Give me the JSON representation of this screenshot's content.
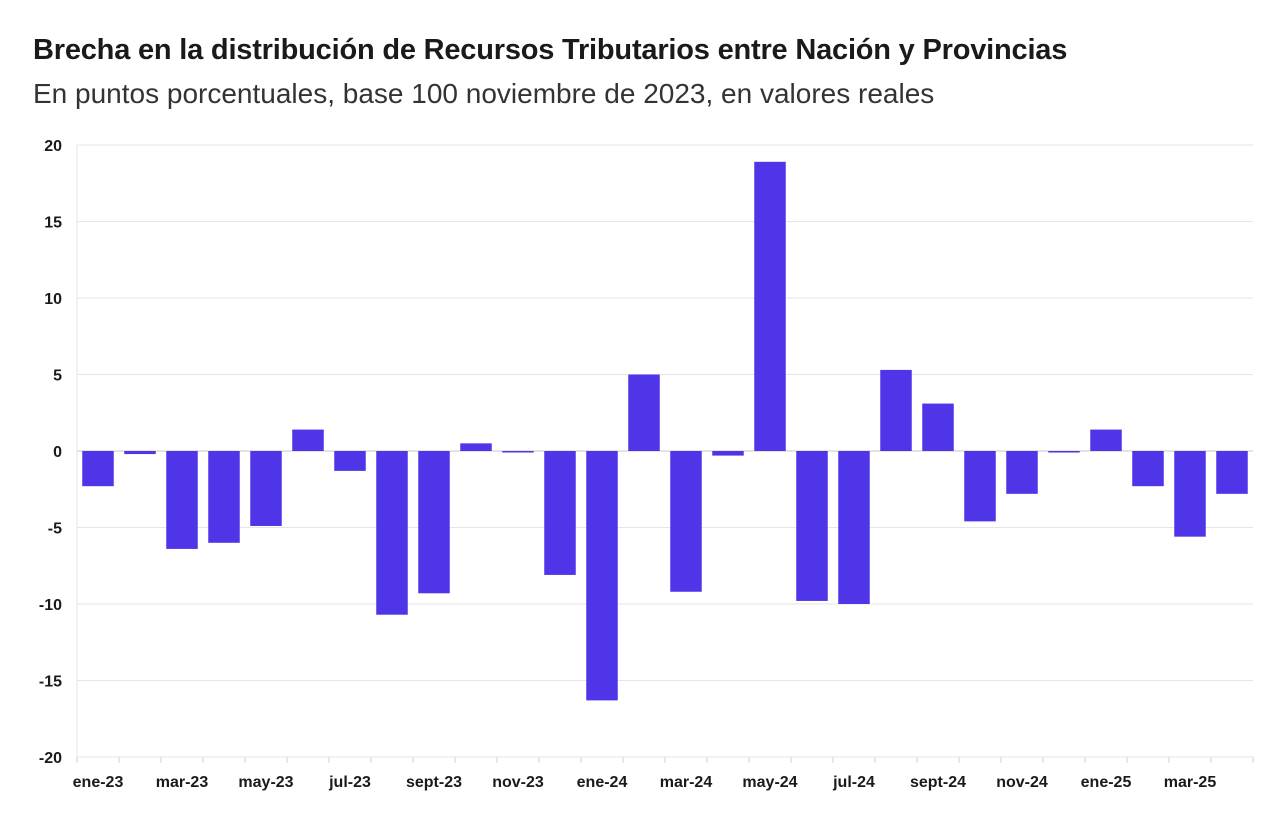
{
  "chart_data": {
    "type": "bar",
    "title": "Brecha en la distribución de Recursos Tributarios entre Nación y Provincias",
    "subtitle": "En puntos porcentuales, base 100 noviembre de 2023, en valores reales",
    "xlabel": "",
    "ylabel": "",
    "ylim": [
      -20,
      20
    ],
    "yticks": [
      20,
      15,
      10,
      5,
      0,
      -5,
      -10,
      -15,
      -20
    ],
    "grid": true,
    "bar_color": "#4f35e8",
    "categories": [
      "ene-23",
      "feb-23",
      "mar-23",
      "abr-23",
      "may-23",
      "jun-23",
      "jul-23",
      "ago-23",
      "sept-23",
      "oct-23",
      "nov-23",
      "dic-23",
      "ene-24",
      "feb-24",
      "mar-24",
      "abr-24",
      "may-24",
      "jun-24",
      "jul-24",
      "ago-24",
      "sept-24",
      "oct-24",
      "nov-24",
      "dic-24",
      "ene-25",
      "feb-25",
      "mar-25",
      "abr-25"
    ],
    "tick_labels": [
      "ene-23",
      "mar-23",
      "may-23",
      "jul-23",
      "sept-23",
      "nov-23",
      "ene-24",
      "mar-24",
      "may-24",
      "jul-24",
      "sept-24",
      "nov-24",
      "ene-25",
      "mar-25"
    ],
    "values": [
      -2.3,
      -0.2,
      -6.4,
      -6.0,
      -4.9,
      1.4,
      -1.3,
      -10.7,
      -9.3,
      0.5,
      0.0,
      -8.1,
      -16.3,
      5.0,
      -9.2,
      -0.3,
      18.9,
      -9.8,
      -10.0,
      5.3,
      3.1,
      -4.6,
      -2.8,
      -0.1,
      1.4,
      -2.3,
      -5.6,
      -2.8
    ]
  }
}
